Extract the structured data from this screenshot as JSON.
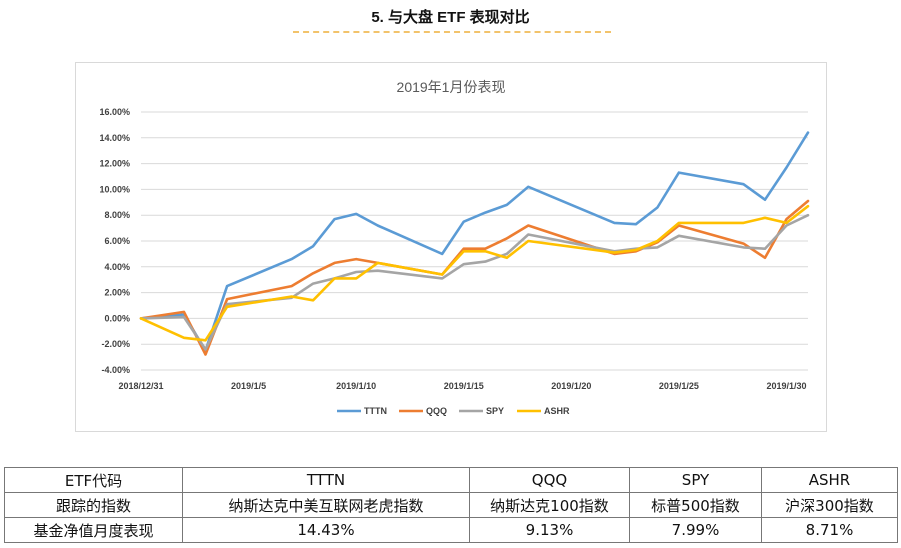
{
  "page": {
    "section_title": "5.   与大盘 ETF 表现对比"
  },
  "chart_data": {
    "type": "line",
    "title": "2019年1月份表现",
    "xlabel": "",
    "ylabel": "",
    "ylim": [
      -4,
      16
    ],
    "yticks": [
      "-4.00%",
      "-2.00%",
      "0.00%",
      "2.00%",
      "4.00%",
      "6.00%",
      "8.00%",
      "10.00%",
      "12.00%",
      "14.00%",
      "16.00%"
    ],
    "x_tick_labels": [
      "2018/12/31",
      "2019/1/5",
      "2019/1/10",
      "2019/1/15",
      "2019/1/20",
      "2019/1/25",
      "2019/1/30"
    ],
    "x_dates": [
      "2018/12/31",
      "2019/1/2",
      "2019/1/3",
      "2019/1/4",
      "2019/1/7",
      "2019/1/8",
      "2019/1/9",
      "2019/1/10",
      "2019/1/11",
      "2019/1/14",
      "2019/1/15",
      "2019/1/16",
      "2019/1/17",
      "2019/1/18",
      "2019/1/22",
      "2019/1/23",
      "2019/1/24",
      "2019/1/25",
      "2019/1/28",
      "2019/1/29",
      "2019/1/30",
      "2019/1/31"
    ],
    "grid": true,
    "legend_position": "bottom",
    "series": [
      {
        "name": "TTTN",
        "color": "#5b9bd5",
        "values": [
          0.0,
          0.3,
          -2.5,
          2.5,
          4.6,
          5.6,
          7.7,
          8.1,
          7.2,
          5.0,
          7.5,
          8.2,
          8.8,
          10.2,
          7.4,
          7.3,
          8.6,
          11.3,
          10.4,
          9.2,
          11.7,
          14.4
        ]
      },
      {
        "name": "QQQ",
        "color": "#ed7d31",
        "values": [
          0.0,
          0.5,
          -2.8,
          1.5,
          2.5,
          3.5,
          4.3,
          4.6,
          4.3,
          3.4,
          5.4,
          5.4,
          6.2,
          7.2,
          5.0,
          5.2,
          5.9,
          7.2,
          5.8,
          4.7,
          7.7,
          9.1
        ]
      },
      {
        "name": "SPY",
        "color": "#a5a5a5",
        "values": [
          0.0,
          0.1,
          -2.4,
          1.1,
          1.6,
          2.7,
          3.1,
          3.6,
          3.7,
          3.1,
          4.2,
          4.4,
          5.0,
          6.5,
          5.2,
          5.4,
          5.5,
          6.4,
          5.5,
          5.4,
          7.2,
          8.0
        ]
      },
      {
        "name": "ASHR",
        "color": "#ffc000",
        "values": [
          0.0,
          -1.5,
          -1.7,
          0.9,
          1.7,
          1.4,
          3.1,
          3.1,
          4.3,
          3.4,
          5.2,
          5.2,
          4.7,
          6.0,
          5.1,
          5.3,
          6.0,
          7.4,
          7.4,
          7.8,
          7.4,
          8.7
        ]
      }
    ]
  },
  "table": {
    "rows": [
      [
        "ETF代码",
        "TTTN",
        "QQQ",
        "SPY",
        "ASHR"
      ],
      [
        "跟踪的指数",
        "纳斯达克中美互联网老虎指数",
        "纳斯达克100指数",
        "标普500指数",
        "沪深300指数"
      ],
      [
        "基金净值月度表现",
        "14.43%",
        "9.13%",
        "7.99%",
        "8.71%"
      ]
    ]
  }
}
